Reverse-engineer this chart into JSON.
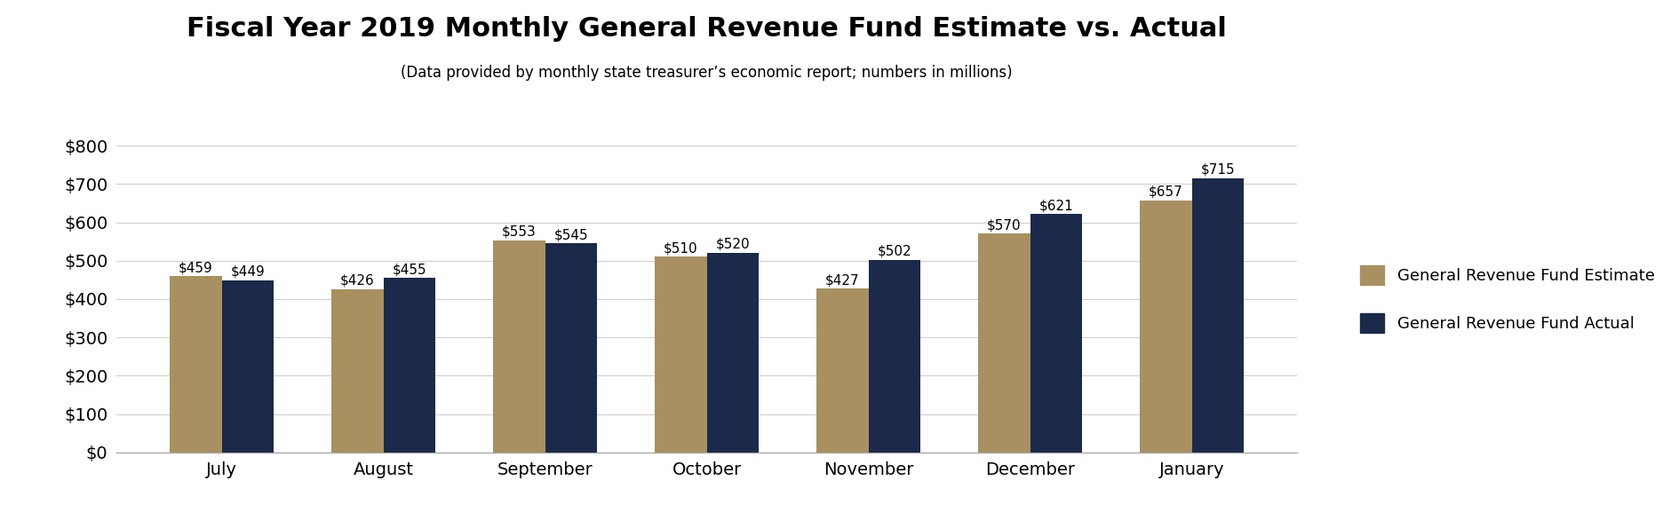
{
  "title": "Fiscal Year 2019 Monthly General Revenue Fund Estimate vs. Actual",
  "subtitle": "(Data provided by monthly state treasurer’s economic report; numbers in millions)",
  "categories": [
    "July",
    "August",
    "September",
    "October",
    "November",
    "December",
    "January"
  ],
  "estimate": [
    459,
    426,
    553,
    510,
    427,
    570,
    657
  ],
  "actual": [
    449,
    455,
    545,
    520,
    502,
    621,
    715
  ],
  "estimate_color": "#A89060",
  "actual_color": "#1B2A4A",
  "estimate_label": "General Revenue Fund Estimate",
  "actual_label": "General Revenue Fund Actual",
  "ylim": [
    0,
    800
  ],
  "yticks": [
    0,
    100,
    200,
    300,
    400,
    500,
    600,
    700,
    800
  ],
  "ytick_labels": [
    "$0",
    "$100",
    "$200",
    "$300",
    "$400",
    "$500",
    "$600",
    "$700",
    "$800"
  ],
  "bar_width": 0.32,
  "title_fontsize": 22,
  "subtitle_fontsize": 12,
  "tick_fontsize": 14,
  "label_fontsize": 11,
  "legend_fontsize": 13,
  "background_color": "#ffffff"
}
